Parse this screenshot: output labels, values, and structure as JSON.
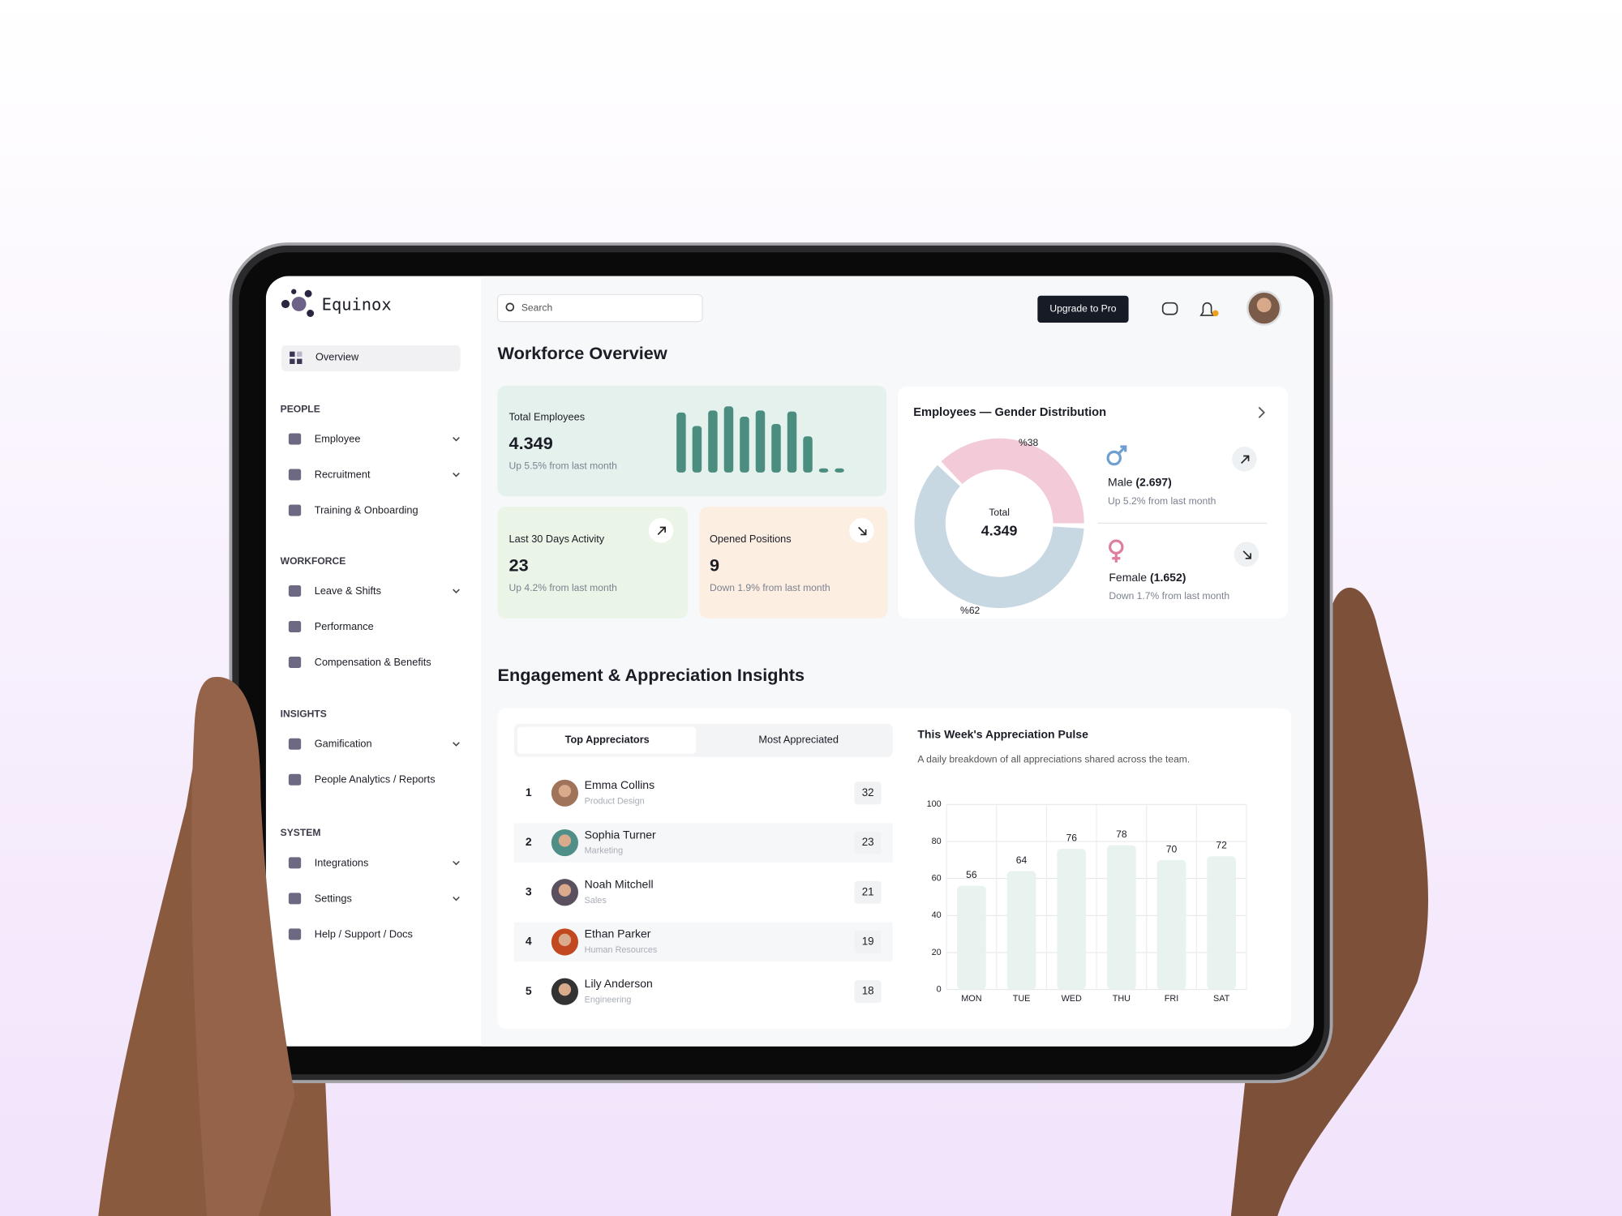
{
  "sidebar": {
    "brand": "Equinox",
    "active": "Overview",
    "sections": [
      {
        "title": "PEOPLE",
        "items": [
          {
            "label": "Employee",
            "expandable": true
          },
          {
            "label": "Recruitment",
            "expandable": true
          },
          {
            "label": "Training & Onboarding",
            "expandable": false
          }
        ]
      },
      {
        "title": "WORKFORCE",
        "items": [
          {
            "label": "Leave & Shifts",
            "expandable": true
          },
          {
            "label": "Performance",
            "expandable": false
          },
          {
            "label": "Compensation & Benefits",
            "expandable": false
          }
        ]
      },
      {
        "title": "INSIGHTS",
        "items": [
          {
            "label": "Gamification",
            "expandable": true
          },
          {
            "label": "People Analytics / Reports",
            "expandable": false
          }
        ]
      },
      {
        "title": "SYSTEM",
        "items": [
          {
            "label": "Integrations",
            "expandable": true
          },
          {
            "label": "Settings",
            "expandable": true
          },
          {
            "label": "Help / Support / Docs",
            "expandable": false
          }
        ]
      }
    ]
  },
  "header": {
    "search_placeholder": "Search",
    "cta": "Upgrade to Pro"
  },
  "workforce": {
    "title": "Workforce Overview",
    "total": {
      "label": "Total Employees",
      "value": "4.349",
      "change": "Up 5.5% from last month",
      "sparkline": [
        58,
        45,
        60,
        64,
        54,
        60,
        47,
        59,
        35,
        4,
        4
      ]
    },
    "activity": {
      "label": "Last 30 Days Activity",
      "value": "23",
      "change": "Up 4.2% from last month"
    },
    "positions": {
      "label": "Opened Positions",
      "value": "9",
      "change": "Down 1.9% from last month"
    }
  },
  "gender": {
    "title": "Employees — Gender Distribution",
    "total_label": "Total",
    "total": "4.349",
    "segments": [
      {
        "label": "%38",
        "value": 38,
        "color": "#f3cbd8"
      },
      {
        "label": "%62",
        "value": 62,
        "color": "#c7d8e3"
      }
    ],
    "male": {
      "label": "Male",
      "count": "(2.697)",
      "change": "Up 5.2% from last month"
    },
    "female": {
      "label": "Female",
      "count": "(1.652)",
      "change": "Down 1.7% from last month"
    }
  },
  "engagement": {
    "title": "Engagement & Appreciation Insights",
    "tabs": [
      "Top Appreciators",
      "Most Appreciated"
    ],
    "rows": [
      {
        "rank": 1,
        "name": "Emma Collins",
        "dept": "Product Design",
        "count": 32
      },
      {
        "rank": 2,
        "name": "Sophia Turner",
        "dept": "Marketing",
        "count": 23
      },
      {
        "rank": 3,
        "name": "Noah Mitchell",
        "dept": "Sales",
        "count": 21
      },
      {
        "rank": 4,
        "name": "Ethan Parker",
        "dept": "Human Resources",
        "count": 19
      },
      {
        "rank": 5,
        "name": "Lily Anderson",
        "dept": "Engineering",
        "count": 18
      }
    ]
  },
  "chart_data": {
    "type": "bar",
    "title": "This Week's Appreciation Pulse",
    "subtitle": "A daily breakdown of all appreciations shared across the team.",
    "categories": [
      "MON",
      "TUE",
      "WED",
      "THU",
      "FRI",
      "SAT"
    ],
    "values": [
      56,
      64,
      76,
      78,
      70,
      72
    ],
    "color": "#e8f3f0",
    "ylim": [
      0,
      100
    ],
    "yticks": [
      0,
      20,
      40,
      60,
      80,
      100
    ],
    "grid": true
  }
}
